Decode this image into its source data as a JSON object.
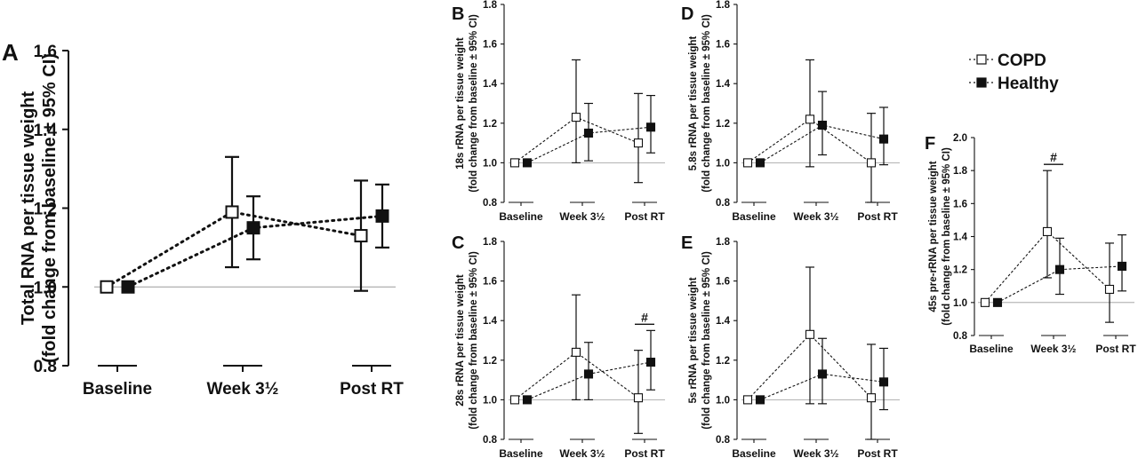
{
  "legend": [
    {
      "label": "COPD",
      "marker": "open-square"
    },
    {
      "label": "Healthy",
      "marker": "filled-square"
    }
  ],
  "colors": {
    "ink": "#111111",
    "baseline_line": "#9a9a9a",
    "background": "#ffffff"
  },
  "chart_data": [
    {
      "panel": "A",
      "type": "scatter",
      "categories": [
        "Baseline",
        "Week 3½",
        "Post RT"
      ],
      "ylabel_line1": "Total RNA per tissue weight",
      "ylabel_line2": "(fold change from baseline ± 95% CI)",
      "ylim": [
        0.8,
        1.6
      ],
      "yticks": [
        "0.8",
        "1.0",
        "1.2",
        "1.4",
        "1.6"
      ],
      "reference_line": 1.0,
      "series": [
        {
          "name": "COPD",
          "values": [
            1.0,
            1.19,
            1.13
          ],
          "ci_low": [
            1.0,
            1.05,
            0.99
          ],
          "ci_high": [
            1.0,
            1.33,
            1.27
          ]
        },
        {
          "name": "Healthy",
          "values": [
            1.0,
            1.15,
            1.18
          ],
          "ci_low": [
            1.0,
            1.07,
            1.1
          ],
          "ci_high": [
            1.0,
            1.23,
            1.26
          ]
        }
      ],
      "annotations": []
    },
    {
      "panel": "B",
      "type": "scatter",
      "categories": [
        "Baseline",
        "Week 3½",
        "Post RT"
      ],
      "ylabel_line1": "18s rRNA per tissue weight",
      "ylabel_line2": "(fold change from baseline ± 95% CI)",
      "ylim": [
        0.8,
        1.8
      ],
      "yticks": [
        "0.8",
        "1.0",
        "1.2",
        "1.4",
        "1.6",
        "1.8"
      ],
      "reference_line": 1.0,
      "series": [
        {
          "name": "COPD",
          "values": [
            1.0,
            1.23,
            1.1
          ],
          "ci_low": [
            1.0,
            1.0,
            0.9
          ],
          "ci_high": [
            1.0,
            1.52,
            1.35
          ]
        },
        {
          "name": "Healthy",
          "values": [
            1.0,
            1.15,
            1.18
          ],
          "ci_low": [
            1.0,
            1.01,
            1.05
          ],
          "ci_high": [
            1.0,
            1.3,
            1.34
          ]
        }
      ],
      "annotations": []
    },
    {
      "panel": "C",
      "type": "scatter",
      "categories": [
        "Baseline",
        "Week 3½",
        "Post RT"
      ],
      "ylabel_line1": "28s rRNA per tissue weight",
      "ylabel_line2": "(fold change from baseline ± 95% CI)",
      "ylim": [
        0.8,
        1.8
      ],
      "yticks": [
        "0.8",
        "1.0",
        "1.2",
        "1.4",
        "1.6",
        "1.8"
      ],
      "reference_line": 1.0,
      "series": [
        {
          "name": "COPD",
          "values": [
            1.0,
            1.24,
            1.01
          ],
          "ci_low": [
            1.0,
            1.0,
            0.83
          ],
          "ci_high": [
            1.0,
            1.53,
            1.25
          ]
        },
        {
          "name": "Healthy",
          "values": [
            1.0,
            1.13,
            1.19
          ],
          "ci_low": [
            1.0,
            1.0,
            1.05
          ],
          "ci_high": [
            1.0,
            1.29,
            1.35
          ]
        }
      ],
      "annotations": [
        {
          "text": "#",
          "category": "Post RT"
        }
      ]
    },
    {
      "panel": "D",
      "type": "scatter",
      "categories": [
        "Baseline",
        "Week 3½",
        "Post RT"
      ],
      "ylabel_line1": "5.8s rRNA per tissue weight",
      "ylabel_line2": "(fold change from baseline ± 95% CI)",
      "ylim": [
        0.8,
        1.8
      ],
      "yticks": [
        "0.8",
        "1.0",
        "1.2",
        "1.4",
        "1.6",
        "1.8"
      ],
      "reference_line": 1.0,
      "series": [
        {
          "name": "COPD",
          "values": [
            1.0,
            1.22,
            1.0
          ],
          "ci_low": [
            1.0,
            0.98,
            0.8
          ],
          "ci_high": [
            1.0,
            1.52,
            1.25
          ]
        },
        {
          "name": "Healthy",
          "values": [
            1.0,
            1.19,
            1.12
          ],
          "ci_low": [
            1.0,
            1.04,
            0.99
          ],
          "ci_high": [
            1.0,
            1.36,
            1.28
          ]
        }
      ],
      "annotations": []
    },
    {
      "panel": "E",
      "type": "scatter",
      "categories": [
        "Baseline",
        "Week 3½",
        "Post RT"
      ],
      "ylabel_line1": "5s rRNA per tissue weight",
      "ylabel_line2": "(fold change from baseline ± 95% CI)",
      "ylim": [
        0.8,
        1.8
      ],
      "yticks": [
        "0.8",
        "1.0",
        "1.2",
        "1.4",
        "1.6",
        "1.8"
      ],
      "reference_line": 1.0,
      "series": [
        {
          "name": "COPD",
          "values": [
            1.0,
            1.33,
            1.01
          ],
          "ci_low": [
            1.0,
            0.98,
            0.8
          ],
          "ci_high": [
            1.0,
            1.67,
            1.28
          ]
        },
        {
          "name": "Healthy",
          "values": [
            1.0,
            1.13,
            1.09
          ],
          "ci_low": [
            1.0,
            0.98,
            0.95
          ],
          "ci_high": [
            1.0,
            1.31,
            1.26
          ]
        }
      ],
      "annotations": []
    },
    {
      "panel": "F",
      "type": "scatter",
      "categories": [
        "Baseline",
        "Week 3½",
        "Post RT"
      ],
      "ylabel_line1": "45s pre-rRNA per tissue weight",
      "ylabel_line2": "(fold change from baseline ± 95% CI)",
      "ylim": [
        0.8,
        2.0
      ],
      "yticks": [
        "0.8",
        "1.0",
        "1.2",
        "1.4",
        "1.6",
        "1.8",
        "2.0"
      ],
      "reference_line": 1.0,
      "series": [
        {
          "name": "COPD",
          "values": [
            1.0,
            1.43,
            1.08
          ],
          "ci_low": [
            1.0,
            1.15,
            0.88
          ],
          "ci_high": [
            1.0,
            1.8,
            1.36
          ]
        },
        {
          "name": "Healthy",
          "values": [
            1.0,
            1.2,
            1.22
          ],
          "ci_low": [
            1.0,
            1.05,
            1.07
          ],
          "ci_high": [
            1.0,
            1.39,
            1.41
          ]
        }
      ],
      "annotations": [
        {
          "text": "#",
          "category": "Week 3½"
        }
      ]
    }
  ]
}
